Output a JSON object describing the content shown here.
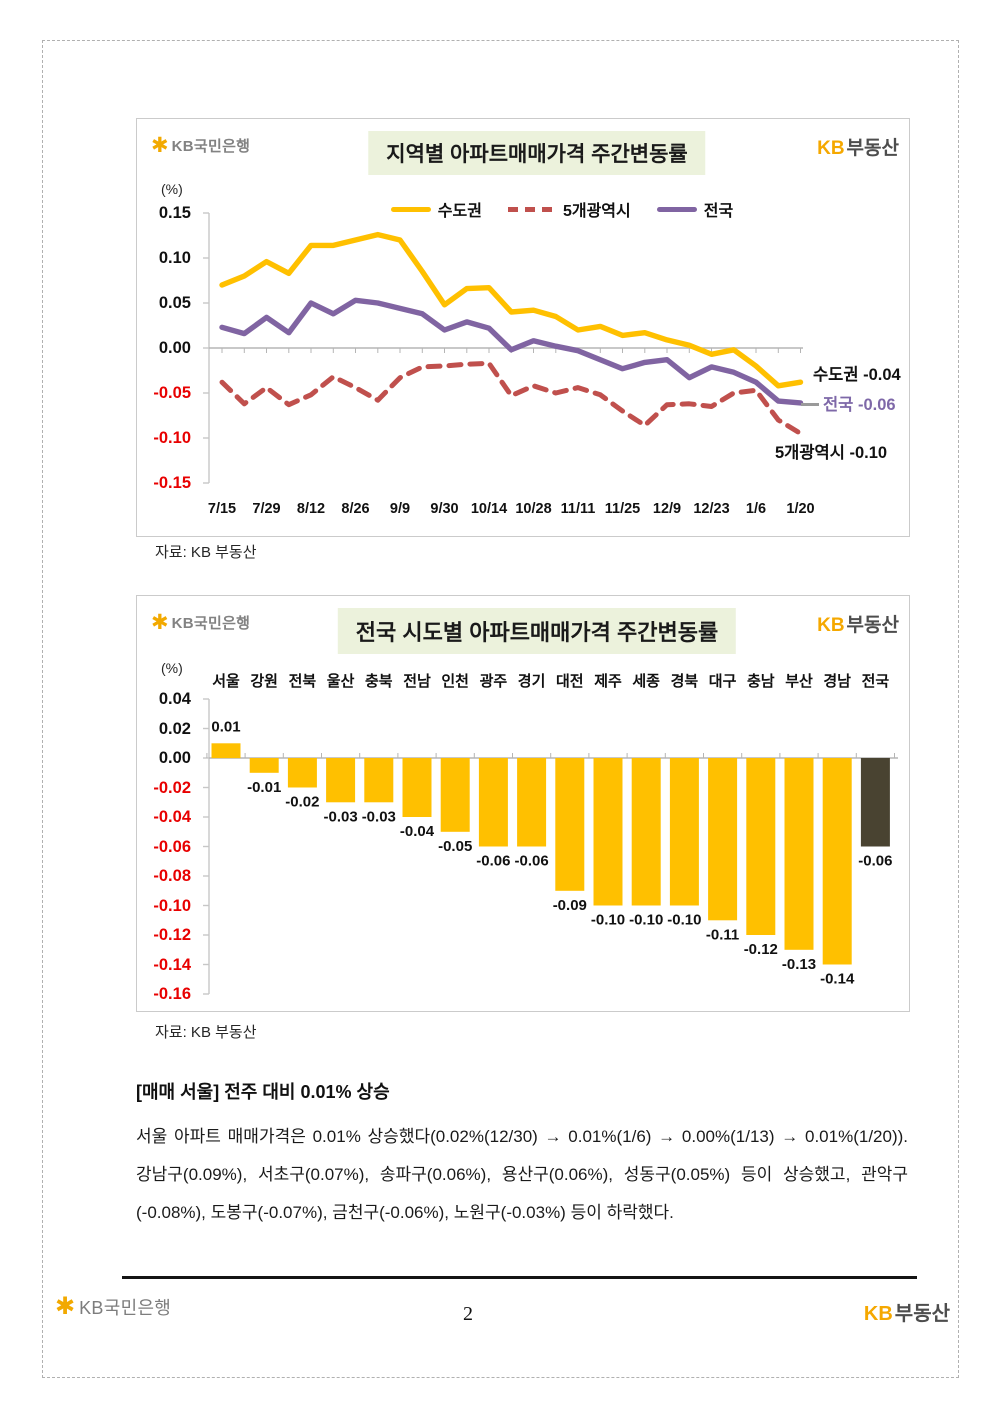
{
  "page": {
    "number": "2"
  },
  "branding": {
    "bank_star": "✱",
    "bank_name": "KB국민은행",
    "realty_kb": "KB",
    "realty_name": "부동산"
  },
  "commentary": {
    "heading": "[매매 서울] 전주 대비 0.01% 상승",
    "body": "서울 아파트 매매가격은 0.01% 상승했다(0.02%(12/30) → 0.01%(1/6) → 0.00%(1/13) → 0.01%(1/20)). 강남구(0.09%), 서초구(0.07%), 송파구(0.06%), 용산구(0.06%), 성동구(0.05%) 등이 상승했고, 관악구(-0.08%), 도봉구(-0.07%), 금천구(-0.06%), 노원구(-0.03%) 등이 하락했다."
  },
  "chart_data": [
    {
      "type": "line",
      "title": "지역별 아파트매매가격 주간변동률",
      "ylabel": "(%)",
      "source": "자료: KB 부동산",
      "ylim": [
        -0.15,
        0.15
      ],
      "yticks": [
        "0.15",
        "0.10",
        "0.05",
        "0.00",
        "-0.05",
        "-0.10",
        "-0.15"
      ],
      "x_tick_labels": [
        "7/15",
        "7/29",
        "8/12",
        "8/26",
        "9/9",
        "9/30",
        "10/14",
        "10/28",
        "11/11",
        "11/25",
        "12/9",
        "12/23",
        "1/6",
        "1/20"
      ],
      "legend_position": "top",
      "grid": false,
      "negative_tick_color": "#e80000",
      "series": [
        {
          "name": "수도권",
          "color": "#FFC000",
          "line_style": "solid",
          "values": [
            0.07,
            0.08,
            0.096,
            0.083,
            0.114,
            0.114,
            0.12,
            0.126,
            0.12,
            0.085,
            0.048,
            0.066,
            0.067,
            0.04,
            0.042,
            0.035,
            0.02,
            0.024,
            0.014,
            0.017,
            0.009,
            0.003,
            -0.007,
            -0.002,
            -0.02,
            -0.042,
            -0.038
          ]
        },
        {
          "name": "5개광역시",
          "color": "#C0504D",
          "line_style": "dashed",
          "values": [
            -0.038,
            -0.062,
            -0.044,
            -0.063,
            -0.052,
            -0.032,
            -0.044,
            -0.058,
            -0.033,
            -0.021,
            -0.02,
            -0.018,
            -0.017,
            -0.053,
            -0.042,
            -0.05,
            -0.044,
            -0.052,
            -0.07,
            -0.086,
            -0.063,
            -0.062,
            -0.065,
            -0.05,
            -0.047,
            -0.08,
            -0.095
          ]
        },
        {
          "name": "전국",
          "color": "#8064A2",
          "line_style": "solid",
          "values": [
            0.023,
            0.016,
            0.034,
            0.017,
            0.05,
            0.038,
            0.053,
            0.05,
            0.044,
            0.038,
            0.02,
            0.029,
            0.022,
            -0.002,
            0.008,
            0.002,
            -0.003,
            -0.013,
            -0.023,
            -0.016,
            -0.013,
            -0.033,
            -0.021,
            -0.027,
            -0.038,
            -0.059,
            -0.061
          ]
        }
      ],
      "annotations": {
        "sudogwon": "수도권 -0.04",
        "jeonguk": "전국 -0.06",
        "gwangyeoksi": "5개광역시 -0.10"
      }
    },
    {
      "type": "bar",
      "title": "전국 시도별 아파트매매가격 주간변동률",
      "ylabel": "(%)",
      "source": "자료: KB 부동산",
      "ylim": [
        -0.16,
        0.04
      ],
      "yticks": [
        "0.04",
        "0.02",
        "0.00",
        "-0.02",
        "-0.04",
        "-0.06",
        "-0.08",
        "-0.10",
        "-0.12",
        "-0.14",
        "-0.16"
      ],
      "categories": [
        "서울",
        "강원",
        "전북",
        "울산",
        "충북",
        "전남",
        "인천",
        "광주",
        "경기",
        "대전",
        "제주",
        "세종",
        "경북",
        "대구",
        "충남",
        "부산",
        "경남",
        "전국"
      ],
      "values": [
        0.01,
        -0.01,
        -0.02,
        -0.03,
        -0.03,
        -0.04,
        -0.05,
        -0.06,
        -0.06,
        -0.09,
        -0.1,
        -0.1,
        -0.1,
        -0.11,
        -0.12,
        -0.13,
        -0.14,
        -0.06
      ],
      "value_labels": [
        "0.01",
        "-0.01",
        "-0.02",
        "-0.03",
        "-0.03",
        "-0.04",
        "-0.05",
        "-0.06",
        "-0.06",
        "-0.09",
        "-0.10",
        "-0.10",
        "-0.10",
        "-0.11",
        "-0.12",
        "-0.13",
        "-0.14",
        "-0.06"
      ],
      "bar_color": "#FFC000",
      "highlight_index": 17,
      "highlight_color": "#494331",
      "negative_tick_color": "#e80000"
    }
  ]
}
